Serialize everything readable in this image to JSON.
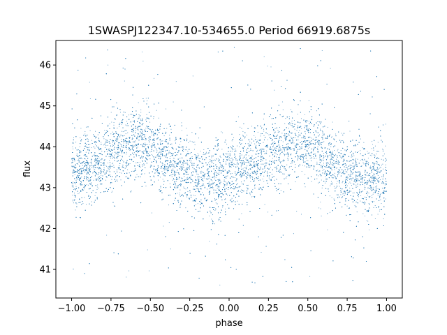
{
  "chart_data": {
    "type": "scatter",
    "title": "1SWASPJ122347.10-534655.0 Period 66919.6875s",
    "xlabel": "phase",
    "ylabel": "flux",
    "xlim": [
      -1.1,
      1.1
    ],
    "ylim": [
      40.3,
      46.6
    ],
    "xticks": [
      -1.0,
      -0.75,
      -0.5,
      -0.25,
      0.0,
      0.25,
      0.5,
      0.75,
      1.0
    ],
    "xtick_labels": [
      "−1.00",
      "−0.75",
      "−0.50",
      "−0.25",
      "0.00",
      "0.25",
      "0.50",
      "0.75",
      "1.00"
    ],
    "yticks": [
      41,
      42,
      43,
      44,
      45,
      46
    ],
    "ytick_labels": [
      "41",
      "42",
      "43",
      "44",
      "45",
      "46"
    ],
    "grid": false,
    "legend": "none",
    "marker_color": "#1f77b4",
    "series": [
      {
        "x": [
          -1.0,
          -0.9,
          -0.8,
          -0.7,
          -0.6,
          -0.5,
          -0.4,
          -0.3,
          -0.2,
          -0.1,
          0.0,
          0.1,
          0.2,
          0.3,
          0.4,
          0.5,
          0.6,
          0.7,
          0.8,
          0.9,
          1.0
        ],
        "y": [
          43.3,
          43.5,
          43.7,
          43.95,
          44.15,
          44.0,
          43.7,
          43.4,
          43.25,
          43.2,
          43.3,
          43.5,
          43.7,
          43.95,
          44.15,
          44.0,
          43.7,
          43.4,
          43.25,
          43.2,
          43.3
        ]
      }
    ],
    "scatter_spread": 0.45,
    "outlier_range": [
      40.6,
      46.5
    ]
  }
}
